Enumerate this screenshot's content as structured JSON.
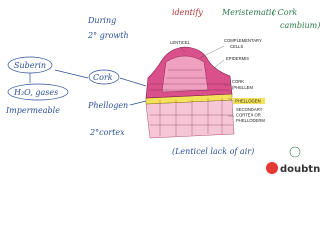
{
  "header": {
    "left": [
      "During",
      "2° growth"
    ],
    "right": [
      "identify",
      "Meristematic",
      "( Cork",
      "cambium)"
    ]
  },
  "notes": {
    "left": [
      "Suberin",
      "H₂O, gases",
      "Impermeable"
    ],
    "middle": [
      "Cork",
      "Phellogen",
      "2°cortex"
    ],
    "bottom": "(Lenticel  lack of air)"
  },
  "diagram": {
    "labels": [
      "LENTICEL",
      "COMPLEMENTARY",
      "CELLS",
      "EPIDERMIS",
      "CORK",
      "(PHELLEM",
      "PHELLOGEN",
      "SECONDARY",
      "CORTEX OR",
      "PHELLODERM"
    ]
  },
  "logo": "doubtnut"
}
